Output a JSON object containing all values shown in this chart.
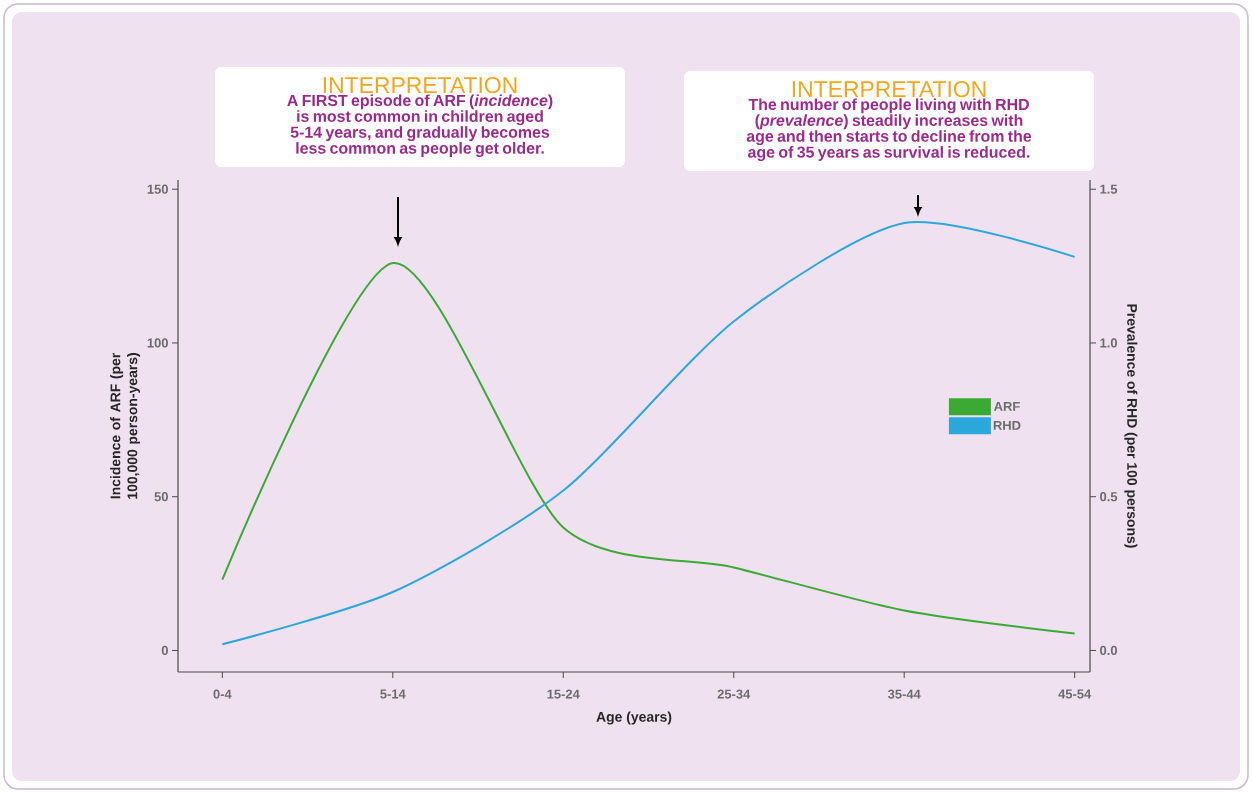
{
  "chart_data": {
    "type": "line",
    "xlabel": "Age (years)",
    "ylabel": "Incidence of ARF (per 100,000 person-years)",
    "y2label": "Prevalence of RHD (per 100 persons)",
    "categories": [
      "0-4",
      "5-14",
      "15-24",
      "25-34",
      "35-44",
      "45-54"
    ],
    "ylim": [
      -7,
      153
    ],
    "y2lim": [
      -0.07,
      1.53
    ],
    "yticks": [
      0,
      50,
      100,
      150
    ],
    "y2ticks": [
      {
        "value": 0,
        "label": "0.0"
      },
      0.5,
      {
        "value": 1,
        "label": "1.0"
      },
      1.5
    ],
    "legend": "right",
    "line_style": "solid",
    "series": [
      {
        "name": "ARF",
        "color": "#3aaa35",
        "values": [
          23,
          126,
          40,
          27,
          13,
          5.5
        ]
      },
      {
        "name": "RHD",
        "color": "#2aa8dc",
        "axis": "y2",
        "values": [
          0.02,
          0.19,
          0.52,
          1.07,
          1.39,
          1.28
        ]
      }
    ],
    "annotations": [
      "INTERPRETATION",
      "A FIRST episode of ARF (*incidence*) is most common in children aged 5-14 years, and gradually becomes less common as people get older.",
      "INTERPRETATION",
      "The number of people living with RHD (*prevalence*) steadily increases with age and then starts to decline from the age of 35 years as survival is reduced."
    ]
  }
}
